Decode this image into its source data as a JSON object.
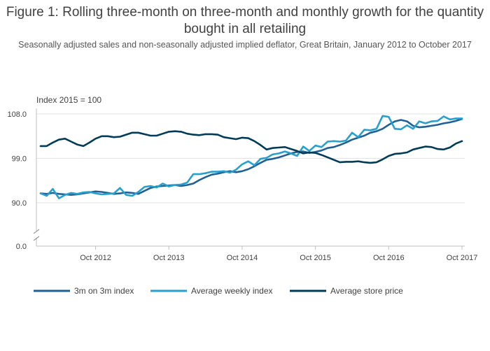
{
  "title": "Figure 1: Rolling three-month on three-month and monthly growth for the quantity bought in all retailing",
  "subtitle": "Seasonally adjusted sales and non-seasonally adjusted implied deflator, Great Britain, January 2012 to October 2017",
  "chart_data": {
    "type": "line",
    "ylabel": "Index 2015 = 100",
    "ylim": [
      0,
      110
    ],
    "y_axis_break": [
      0,
      90
    ],
    "yticks": [
      "108.0",
      "99.0",
      "90.0",
      "0.0"
    ],
    "ytick_values": [
      108,
      99,
      90,
      0
    ],
    "xticks": [
      "Oct 2012",
      "Oct 2013",
      "Oct 2014",
      "Oct 2015",
      "Oct 2016",
      "Oct 2017"
    ],
    "x_start": "Jan 2012",
    "x_end": "Oct 2017",
    "grid": true,
    "legend_position": "bottom",
    "series": [
      {
        "name": "3m on 3m index",
        "color": "#206095",
        "values": [
          91.9,
          91.8,
          92.0,
          91.8,
          91.7,
          91.6,
          91.7,
          91.9,
          92.1,
          92.3,
          92.2,
          92.0,
          91.8,
          91.9,
          92.1,
          92.0,
          91.8,
          92.4,
          93.0,
          93.3,
          93.4,
          93.5,
          93.6,
          93.4,
          93.6,
          93.9,
          94.6,
          95.2,
          95.7,
          95.9,
          96.2,
          96.4,
          96.2,
          96.4,
          96.8,
          97.4,
          98.1,
          98.7,
          98.9,
          99.2,
          99.6,
          100.0,
          100.3,
          100.4,
          100.1,
          100.3,
          100.6,
          101.1,
          101.3,
          101.7,
          102.2,
          102.8,
          103.2,
          103.6,
          104.2,
          104.5,
          105.0,
          105.8,
          106.5,
          106.8,
          106.5,
          105.6,
          105.3,
          105.4,
          105.6,
          105.8,
          106.1,
          106.3,
          106.6,
          107.0
        ]
      },
      {
        "name": "Average weekly index",
        "color": "#27a0cc",
        "values": [
          91.9,
          91.4,
          92.8,
          90.9,
          91.6,
          92.0,
          91.8,
          92.1,
          92.2,
          91.9,
          91.7,
          91.8,
          91.9,
          93.0,
          91.6,
          91.4,
          92.2,
          93.2,
          93.4,
          93.1,
          93.9,
          93.3,
          93.6,
          93.7,
          94.1,
          95.8,
          95.8,
          96.0,
          96.3,
          96.3,
          96.4,
          96.1,
          96.7,
          97.8,
          98.4,
          97.6,
          98.9,
          99.1,
          99.8,
          100.0,
          100.4,
          100.0,
          99.5,
          101.4,
          100.5,
          101.6,
          101.3,
          102.4,
          102.5,
          102.4,
          102.6,
          104.2,
          103.3,
          104.8,
          104.7,
          105.0,
          107.6,
          107.4,
          105.0,
          104.9,
          105.7,
          105.0,
          106.5,
          106.1,
          106.5,
          106.6,
          107.5,
          106.9,
          107.1,
          107.1
        ]
      },
      {
        "name": "Average store price",
        "color": "#003c57",
        "values": [
          101.5,
          101.5,
          102.2,
          102.8,
          103.0,
          102.4,
          101.8,
          101.5,
          102.2,
          103.0,
          103.5,
          103.5,
          103.3,
          103.4,
          103.8,
          104.2,
          104.2,
          103.9,
          103.6,
          103.6,
          104.0,
          104.4,
          104.5,
          104.4,
          104.0,
          103.8,
          103.7,
          103.9,
          103.9,
          103.8,
          103.3,
          103.1,
          102.9,
          103.2,
          103.1,
          102.5,
          101.7,
          100.8,
          101.1,
          101.2,
          101.3,
          100.9,
          100.5,
          100.0,
          100.2,
          100.1,
          99.7,
          99.2,
          98.7,
          98.2,
          98.3,
          98.3,
          98.4,
          98.2,
          98.1,
          98.2,
          98.8,
          99.5,
          99.9,
          100.0,
          100.2,
          100.8,
          101.1,
          101.4,
          101.3,
          100.9,
          100.8,
          101.2,
          102.0,
          102.5
        ]
      }
    ]
  }
}
